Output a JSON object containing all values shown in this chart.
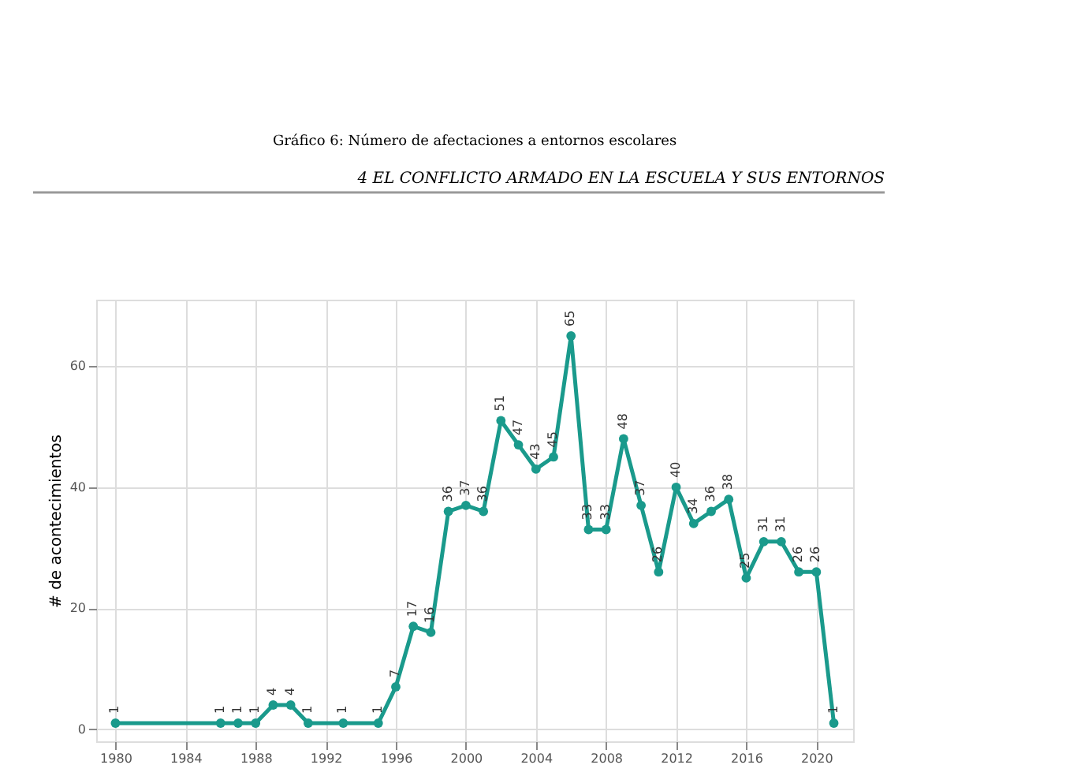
{
  "chart_data": {
    "type": "line",
    "title": "Gráfico 6: Número de afectaciones a entornos escolares",
    "ylabel": "# de acontecimientos",
    "annotations": [
      "4   EL CONFLICTO ARMADO EN LA ESCUELA Y SUS ENTORNOS"
    ],
    "x": [
      1980,
      1986,
      1987,
      1988,
      1989,
      1990,
      1991,
      1993,
      1995,
      1996,
      1997,
      1998,
      1999,
      2000,
      2001,
      2002,
      2003,
      2004,
      2005,
      2006,
      2007,
      2008,
      2009,
      2010,
      2011,
      2012,
      2013,
      2014,
      2015,
      2016,
      2017,
      2018,
      2019,
      2020,
      2021
    ],
    "series": [
      {
        "color": "#1a9a8c",
        "values": [
          1,
          1,
          1,
          1,
          4,
          4,
          1,
          1,
          1,
          7,
          17,
          16,
          36,
          37,
          36,
          51,
          47,
          43,
          45,
          65,
          33,
          33,
          48,
          37,
          26,
          40,
          34,
          36,
          38,
          25,
          31,
          31,
          26,
          26,
          1
        ]
      }
    ],
    "xlim": [
      1978.9,
      2022.1
    ],
    "xticks": [
      1980,
      1984,
      1988,
      1992,
      1996,
      2000,
      2004,
      2008,
      2012,
      2016,
      2020
    ],
    "ylim": [
      -2,
      71
    ],
    "yticks": [
      0,
      20,
      40,
      60
    ],
    "grid": true,
    "marker": "circle",
    "line_style": "solid",
    "data_labels": true
  }
}
